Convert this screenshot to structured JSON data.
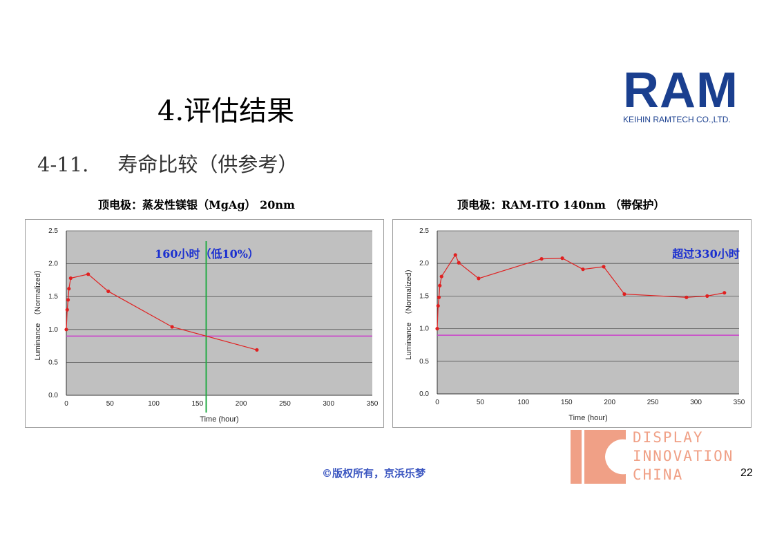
{
  "header": {
    "section_title": "4.评估结果",
    "subsection_number": "4-11.",
    "subsection_title": "寿命比较（供参考）"
  },
  "logo": {
    "brand": "RAM",
    "company": "KEIHIN RAMTECH CO.,LTD.",
    "colors": {
      "brand": "#1a3f8f"
    }
  },
  "chart_data": [
    {
      "type": "line",
      "title": "顶电极：蒸发性镁银（MgAg） 20nm",
      "xlabel": "Time (hour)",
      "ylabel": "Luminance　（Normalized）",
      "xlim": [
        0,
        350
      ],
      "ylim": [
        0,
        2.5
      ],
      "xticks": [
        "0",
        "50",
        "100",
        "150",
        "200",
        "250",
        "300",
        "350"
      ],
      "yticks": [
        "0.0",
        "0.5",
        "1.0",
        "1.5",
        "2.0",
        "2.5"
      ],
      "grid": true,
      "series": [
        {
          "x": [
            0,
            1,
            2,
            3,
            5,
            25,
            48,
            121,
            218
          ],
          "values": [
            1.0,
            1.3,
            1.45,
            1.62,
            1.78,
            1.84,
            1.58,
            1.04,
            0.69
          ],
          "color": "#e02020"
        }
      ],
      "reference_line": {
        "y": 0.9,
        "color": "#cc33cc"
      },
      "marker_line": {
        "x": 160,
        "color": "#22aa44"
      },
      "annotation": {
        "text": "160小时（低10%）",
        "color": "#1a2fd0"
      }
    },
    {
      "type": "line",
      "title": "顶电极：RAM-ITO 140nm （带保护）",
      "xlabel": "Time (hour)",
      "ylabel": "Luminance　（Normalized）",
      "xlim": [
        0,
        350
      ],
      "ylim": [
        0,
        2.5
      ],
      "xticks": [
        "0",
        "50",
        "100",
        "150",
        "200",
        "250",
        "300",
        "350"
      ],
      "yticks": [
        "0.0",
        "0.5",
        "1.0",
        "1.5",
        "2.0",
        "2.5"
      ],
      "grid": true,
      "series": [
        {
          "x": [
            0,
            1,
            2,
            3,
            5,
            21,
            25,
            48,
            121,
            145,
            169,
            193,
            217,
            289,
            313,
            333
          ],
          "values": [
            1.0,
            1.35,
            1.48,
            1.66,
            1.8,
            2.13,
            2.01,
            1.77,
            2.07,
            2.08,
            1.91,
            1.95,
            1.53,
            1.48,
            1.5,
            1.55
          ],
          "color": "#e02020"
        }
      ],
      "reference_line": {
        "y": 0.9,
        "color": "#cc33cc"
      },
      "annotation": {
        "text": "超过330小时",
        "color": "#1a2fd0"
      }
    }
  ],
  "footer": {
    "copyright": "©版权所有，京浜乐梦",
    "page_number": "22",
    "watermark_lines": [
      "DISPLAY",
      "INNOVATION",
      "CHINA"
    ],
    "colors": {
      "copyright": "#3a55c0",
      "watermark": "#f0a086"
    }
  }
}
